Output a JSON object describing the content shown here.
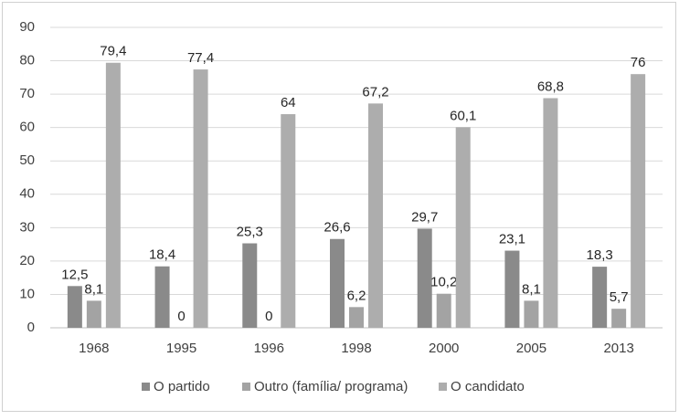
{
  "chart_data": {
    "type": "bar",
    "categories": [
      "1968",
      "1995",
      "1996",
      "1998",
      "2000",
      "2005",
      "2013"
    ],
    "series": [
      {
        "name": "O partido",
        "color": "#8a8a8a",
        "values": [
          12.5,
          18.4,
          25.3,
          26.6,
          29.7,
          23.1,
          18.3
        ],
        "value_labels": [
          "12,5",
          "18,4",
          "25,3",
          "26,6",
          "29,7",
          "23,1",
          "18,3"
        ]
      },
      {
        "name": "Outro (família/ programa)",
        "color": "#a3a3a3",
        "values": [
          8.1,
          0,
          0,
          6.2,
          10.2,
          8.1,
          5.7
        ],
        "value_labels": [
          "8,1",
          "0",
          "0",
          "6,2",
          "10,2",
          "8,1",
          "5,7"
        ]
      },
      {
        "name": "O candidato",
        "color": "#adadad",
        "values": [
          79.4,
          77.4,
          64,
          67.2,
          60.1,
          68.8,
          76
        ],
        "value_labels": [
          "79,4",
          "77,4",
          "64",
          "67,2",
          "60,1",
          "68,8",
          "76"
        ]
      }
    ],
    "ylim": [
      0,
      90
    ],
    "yticks": [
      0,
      10,
      20,
      30,
      40,
      50,
      60,
      70,
      80,
      90
    ],
    "grid": true,
    "legend": "bottom"
  }
}
